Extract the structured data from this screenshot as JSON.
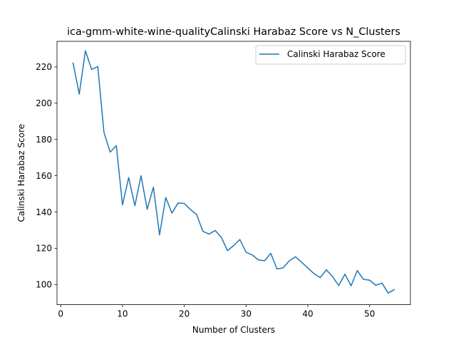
{
  "chart_data": {
    "type": "line",
    "title": "ica-gmm-white-wine-qualityCalinski Harabaz Score vs N_Clusters",
    "xlabel": "Number of Clusters",
    "ylabel": "Calinski Harabaz Score",
    "xlim": [
      -0.6,
      56.6
    ],
    "ylim": [
      88.9,
      234.1
    ],
    "xticks": [
      0,
      10,
      20,
      30,
      40,
      50
    ],
    "yticks": [
      100,
      120,
      140,
      160,
      180,
      200,
      220
    ],
    "grid": false,
    "legend_position": "top-right",
    "series": [
      {
        "name": "Calinski Harabaz Score",
        "color": "#1f77b4",
        "x": [
          2,
          3,
          4,
          5,
          6,
          7,
          8,
          9,
          10,
          11,
          12,
          13,
          14,
          15,
          16,
          17,
          18,
          19,
          20,
          21,
          22,
          23,
          24,
          25,
          26,
          27,
          28,
          29,
          30,
          31,
          32,
          33,
          34,
          35,
          36,
          37,
          38,
          39,
          40,
          41,
          42,
          43,
          44,
          45,
          46,
          47,
          48,
          49,
          50,
          51,
          52,
          53,
          54
        ],
        "y": [
          222.2,
          205.0,
          228.9,
          218.6,
          220.2,
          183.9,
          173.0,
          176.6,
          143.9,
          159.0,
          143.5,
          160.0,
          141.5,
          153.7,
          127.4,
          148.0,
          139.4,
          145.0,
          144.7,
          141.3,
          138.6,
          129.4,
          127.8,
          129.8,
          126.0,
          118.7,
          121.5,
          124.8,
          117.8,
          116.3,
          113.6,
          113.1,
          117.2,
          108.6,
          109.2,
          113.1,
          115.3,
          112.3,
          109.1,
          106.0,
          103.8,
          108.1,
          104.4,
          99.4,
          105.7,
          99.3,
          107.7,
          102.9,
          102.4,
          99.6,
          100.8,
          95.3,
          97.2
        ]
      }
    ]
  }
}
